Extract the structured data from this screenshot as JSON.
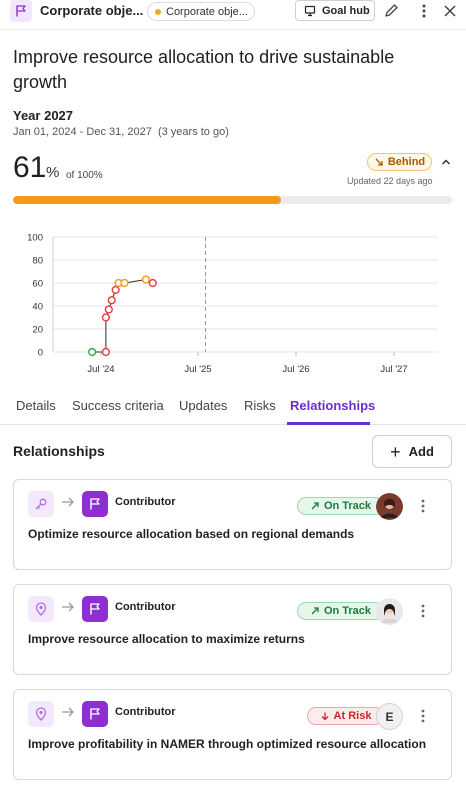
{
  "header": {
    "breadcrumb": "Corporate obje...",
    "pill_label": "Corporate obje...",
    "goal_hub_label": "Goal hub"
  },
  "goal": {
    "title": "Improve resource allocation to drive sustainable growth",
    "period_label": "Year 2027",
    "date_range": "Jan 01, 2024 - Dec 31, 2027",
    "duration": "(3 years to go)",
    "progress_value": "61",
    "progress_unit": "%",
    "progress_of": "of 100%",
    "progress_fraction": 0.61,
    "status": "Behind",
    "updated": "Updated 22 days ago"
  },
  "chart_data": {
    "type": "line",
    "yticks": [
      "100",
      "80",
      "60",
      "40",
      "20",
      "0"
    ],
    "xticks": [
      "Jul '24",
      "Jul '25",
      "Jul '26",
      "Jul '27"
    ],
    "ylim": [
      0,
      100
    ],
    "points": [
      {
        "x": 0.0,
        "y": 0,
        "color": "#2da44e"
      },
      {
        "x": 0.14,
        "y": 0,
        "color": "#e23c3c"
      },
      {
        "x": 0.14,
        "y": 30,
        "color": "#e23c3c"
      },
      {
        "x": 0.17,
        "y": 37,
        "color": "#e23c3c"
      },
      {
        "x": 0.2,
        "y": 45,
        "color": "#e23c3c"
      },
      {
        "x": 0.24,
        "y": 54,
        "color": "#e23c3c"
      },
      {
        "x": 0.27,
        "y": 60,
        "color": "#f4991a"
      },
      {
        "x": 0.33,
        "y": 60,
        "color": "#f4991a"
      },
      {
        "x": 0.55,
        "y": 63,
        "color": "#f4991a"
      },
      {
        "x": 0.62,
        "y": 60,
        "color": "#e23c3c"
      }
    ],
    "x_domain": [
      0,
      3.6
    ],
    "today_marker_x": 1.16
  },
  "tabs": [
    "Details",
    "Success criteria",
    "Updates",
    "Risks",
    "Relationships"
  ],
  "active_tab": "Relationships",
  "relationships": {
    "heading": "Relationships",
    "add_label": "Add",
    "cards": [
      {
        "role": "Contributor",
        "status": "On Track",
        "goal": "Optimize resource allocation based on regional demands",
        "avatar": ""
      },
      {
        "role": "Contributor",
        "status": "On Track",
        "goal": "Improve resource allocation to maximize returns",
        "avatar": ""
      },
      {
        "role": "Contributor",
        "status": "At Risk",
        "goal": "Improve profitability in NAMER through optimized resource allocation",
        "avatar": "E"
      }
    ]
  },
  "colors": {
    "accent": "#6b2fd1",
    "progress": "#f4991a",
    "on_track": "#1e7a3c",
    "at_risk": "#c32828",
    "behind": "#a45b00"
  }
}
